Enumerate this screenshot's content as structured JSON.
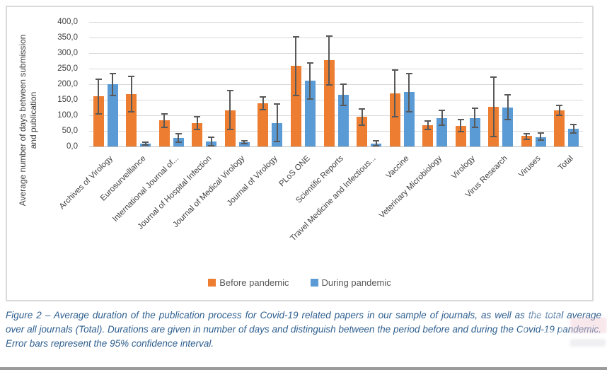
{
  "figure": {
    "caption": "Figure 2 – Average duration of the publication process for Covid-19 related papers in our sample of journals, as well as the total average over all journals (Total). Durations are given in number of days and distinguish between the period before and during the Covid-19 pandemic. Error bars represent the 95% confidence interval."
  },
  "chart_data": {
    "type": "bar",
    "title": "",
    "ylabel": "Average number of days between submission and publication",
    "ylabel_lines": [
      "Average number of days  between submission",
      "and publication"
    ],
    "xlabel": "",
    "ylim": [
      0,
      400
    ],
    "ytick_step": 50,
    "ytick_labels": [
      "400,0",
      "350,0",
      "300,0",
      "250,0",
      "200,0",
      "150,0",
      "100,0",
      "50,0",
      "0,0"
    ],
    "grid": true,
    "legend_position": "bottom-center",
    "error_bars_represent": "95% confidence interval",
    "categories": [
      "Archives of Virology",
      "Eurosurveillance",
      "International Journal of...",
      "Journal of Hospital Infection",
      "Journal of Medical Virology",
      "Journal of Virology",
      "PLoS ONE",
      "Scientific Reports",
      "Travel Medicine and Infectious...",
      "Vaccine",
      "Veterinary Microbiology",
      "Virology",
      "Virus Research",
      "Viruses",
      "Total"
    ],
    "series": [
      {
        "name": "Before pandemic",
        "color": "#ED7D31",
        "values": [
          161,
          168,
          83,
          75,
          116,
          139,
          259,
          277,
          95,
          170,
          69,
          67,
          128,
          33,
          116
        ],
        "ci_low": [
          105,
          112,
          62,
          54,
          55,
          118,
          164,
          197,
          68,
          95,
          55,
          47,
          32,
          23,
          101
        ],
        "ci_high": [
          216,
          224,
          105,
          95,
          180,
          159,
          352,
          355,
          120,
          245,
          82,
          87,
          222,
          42,
          132
        ]
      },
      {
        "name": "During pandemic",
        "color": "#5B9BD5",
        "values": [
          199,
          9,
          27,
          16,
          13,
          75,
          211,
          165,
          10,
          174,
          92,
          92,
          125,
          30,
          57
        ],
        "ci_low": [
          163,
          5,
          13,
          3,
          8,
          16,
          153,
          131,
          3,
          112,
          68,
          61,
          87,
          21,
          44
        ],
        "ci_high": [
          233,
          13,
          41,
          29,
          19,
          136,
          268,
          201,
          18,
          234,
          117,
          123,
          165,
          44,
          70
        ]
      }
    ],
    "colors": {
      "error_bar": "#595959",
      "gridline": "#D9D9D9",
      "axis_text": "#404040",
      "caption_text": "#2E5F8F"
    }
  },
  "watermark": {
    "icon": "camera-icon"
  }
}
